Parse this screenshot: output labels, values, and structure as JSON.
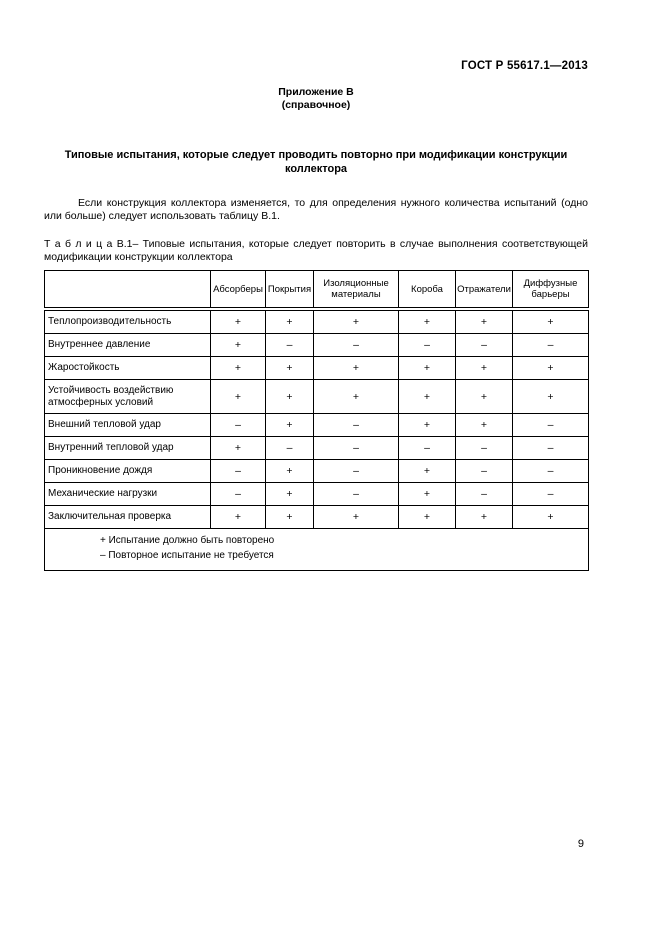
{
  "document": {
    "standard_ref": "ГОСТ Р 55617.1—2013",
    "annex_label": "Приложение В",
    "annex_type": "(справочное)",
    "title": "Типовые испытания, которые следует проводить повторно при модификации конструкции коллектора",
    "paragraph": "Если конструкция коллектора изменяется, то для определения нужного количества испытаний (одно или больше) следует использовать таблицу В.1.",
    "table_caption": "Т а б л и ц а  В.1– Типовые испытания, которые следует повторить в случае выполнения соответствующей модификации конструкции коллектора",
    "page_number": "9"
  },
  "table": {
    "columns": [
      "",
      "Абсорберы",
      "Покрытия",
      "Изоляционные материалы",
      "Короба",
      "Отражатели",
      "Диффузные барьеры"
    ],
    "rows": [
      {
        "label": "Теплопроизводительность",
        "values": [
          "+",
          "+",
          "+",
          "+",
          "+",
          "+"
        ]
      },
      {
        "label": "Внутреннее давление",
        "values": [
          "+",
          "–",
          "–",
          "–",
          "–",
          "–"
        ]
      },
      {
        "label": "Жаростойкость",
        "values": [
          "+",
          "+",
          "+",
          "+",
          "+",
          "+"
        ]
      },
      {
        "label": "Устойчивость воздействию атмосферных условий",
        "values": [
          "+",
          "+",
          "+",
          "+",
          "+",
          "+"
        ]
      },
      {
        "label": "Внешний тепловой удар",
        "values": [
          "–",
          "+",
          "–",
          "+",
          "+",
          "–"
        ]
      },
      {
        "label": "Внутренний тепловой удар",
        "values": [
          "+",
          "–",
          "–",
          "–",
          "–",
          "–"
        ]
      },
      {
        "label": "Проникновение дождя",
        "values": [
          "–",
          "+",
          "–",
          "+",
          "–",
          "–"
        ]
      },
      {
        "label": "Механические нагрузки",
        "values": [
          "–",
          "+",
          "–",
          "+",
          "–",
          "–"
        ]
      },
      {
        "label": "Заключительная проверка",
        "values": [
          "+",
          "+",
          "+",
          "+",
          "+",
          "+"
        ]
      }
    ],
    "notes": [
      "+ Испытание должно быть повторено",
      "– Повторное испытание не требуется"
    ]
  }
}
